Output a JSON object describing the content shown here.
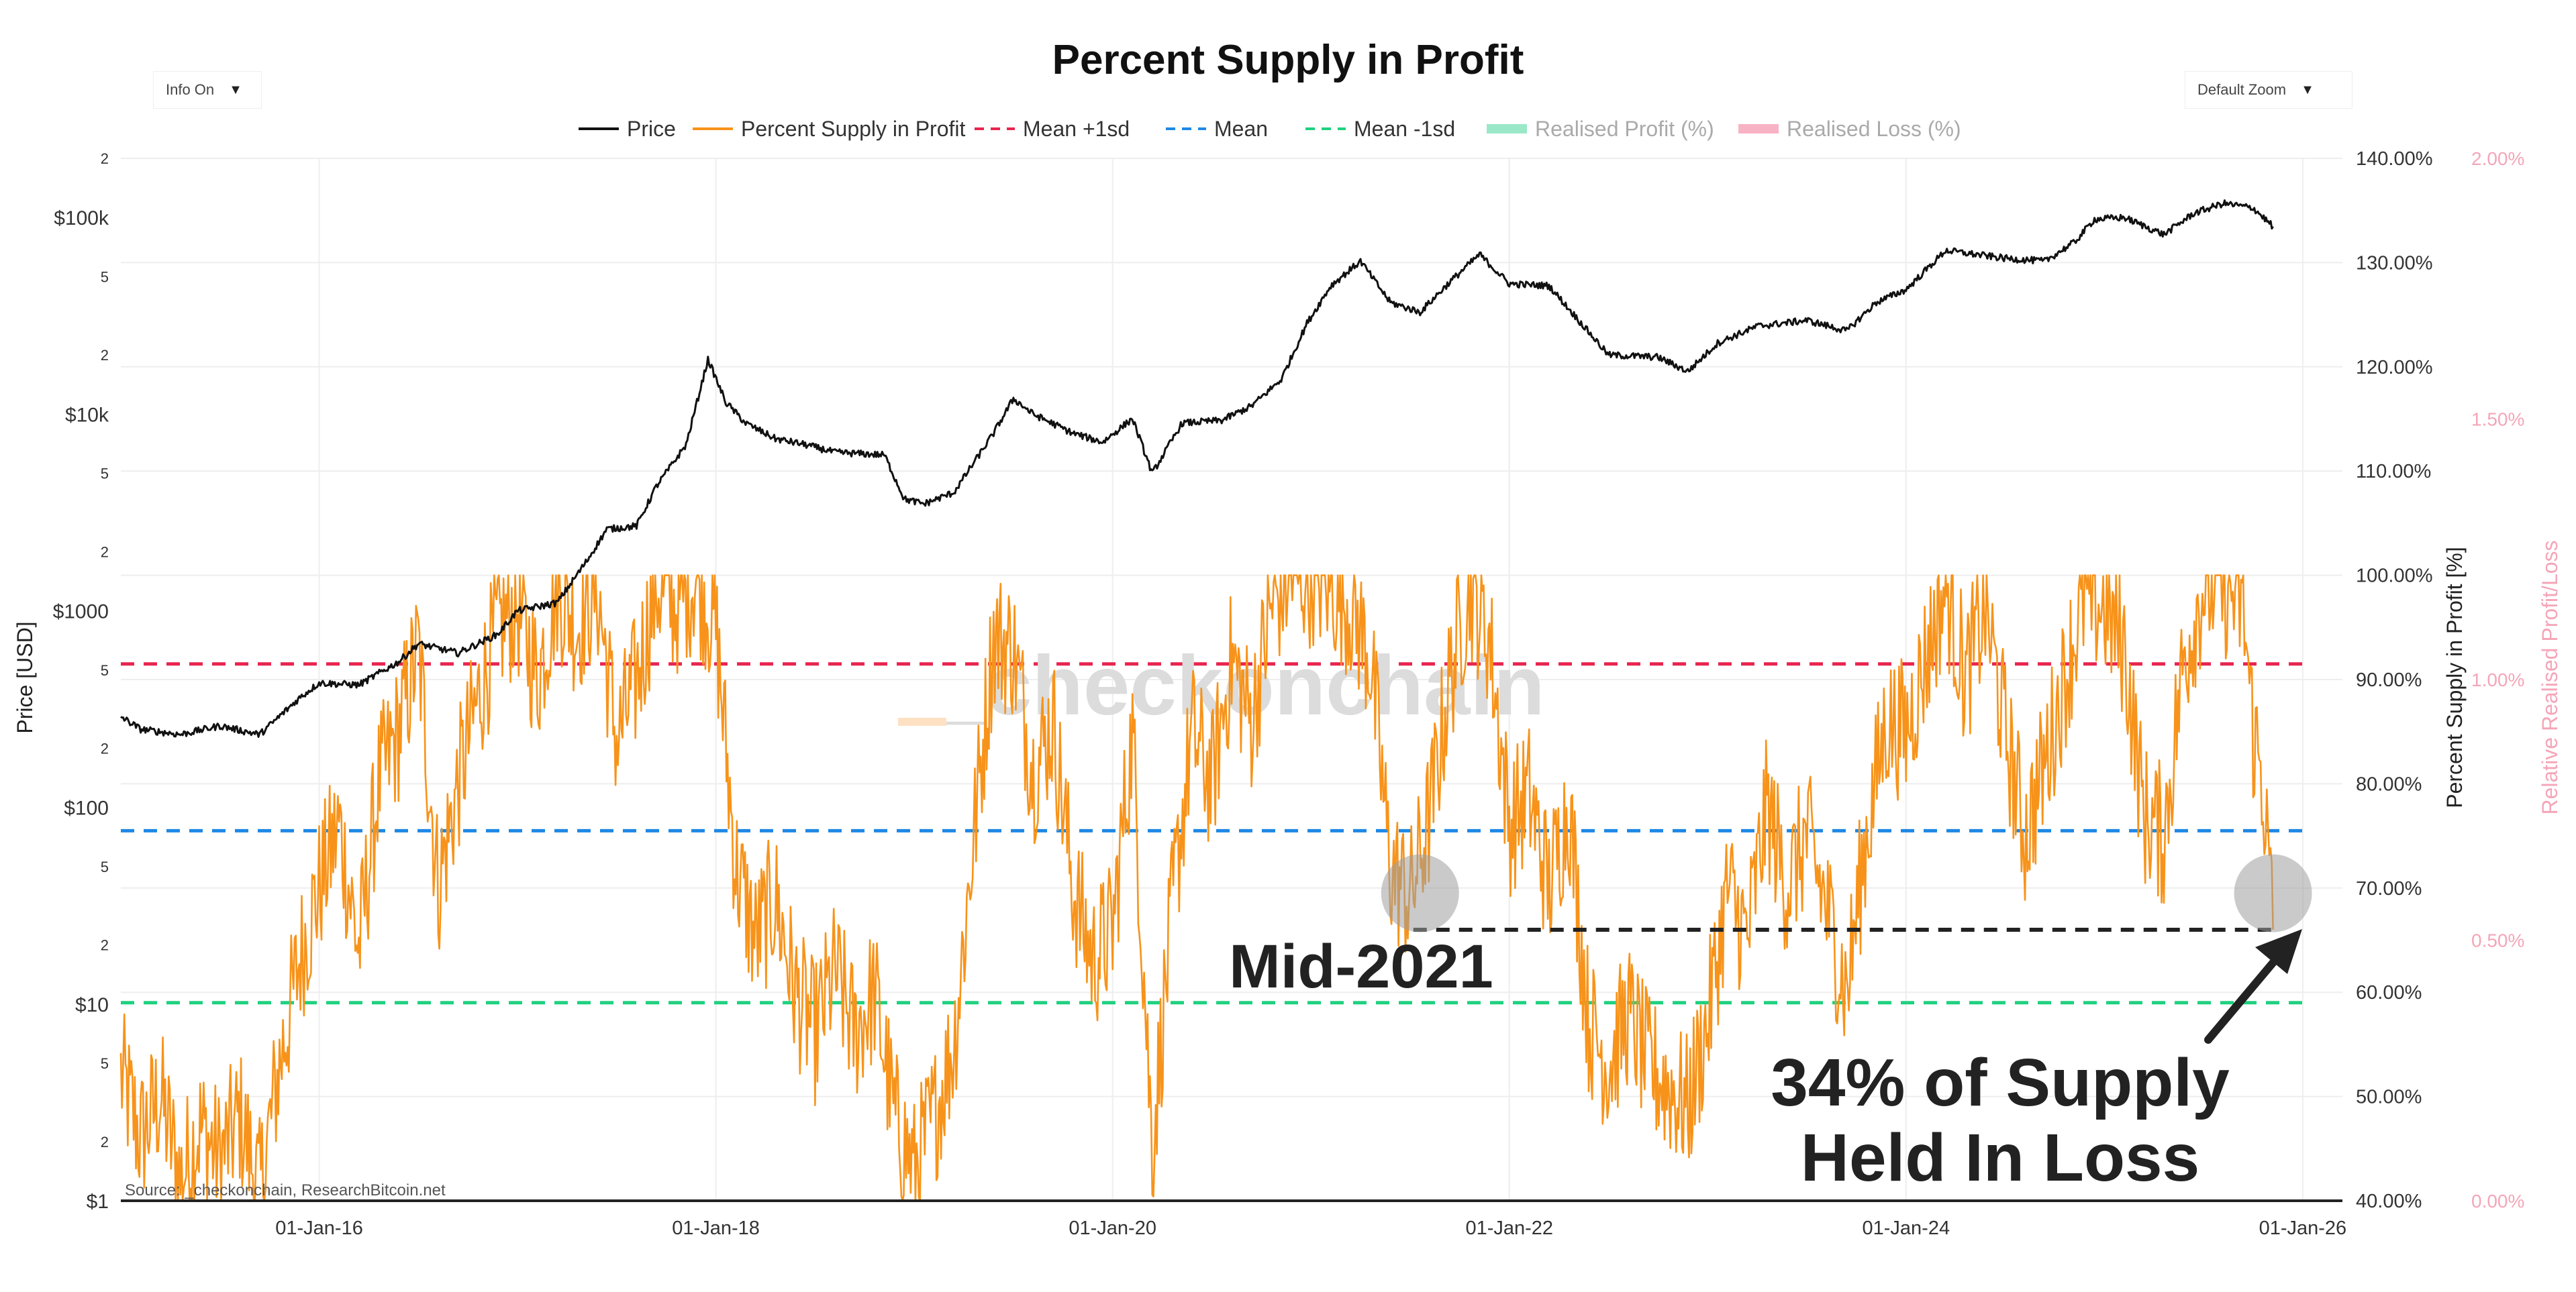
{
  "controls": {
    "info": {
      "label": "Info On",
      "caret": "▼"
    },
    "zoom": {
      "label": "Default Zoom",
      "caret": "▼"
    }
  },
  "colors": {
    "price": "#111111",
    "supply": "#f7931a",
    "mean_plus": "#e8254f",
    "mean": "#1e88e5",
    "mean_minus": "#1fd17f",
    "realised_profit": "#9be8c8",
    "realised_loss": "#f7b2c4",
    "callout": "#222222",
    "right2_axis": "#f4a6b8"
  },
  "chart_data": {
    "type": "line",
    "title": "Percent Supply in Profit",
    "source": "Source: _checkonchain, ResearchBitcoin.net",
    "watermark": "_checkonchain",
    "legend": [
      {
        "name": "Price",
        "style": "solid"
      },
      {
        "name": "Percent Supply in Profit",
        "style": "solid"
      },
      {
        "name": "Mean +1sd",
        "style": "dash"
      },
      {
        "name": "Mean",
        "style": "dash"
      },
      {
        "name": "Mean -1sd",
        "style": "dash"
      },
      {
        "name": "Realised Profit (%)",
        "style": "band"
      },
      {
        "name": "Realised Loss (%)",
        "style": "band"
      }
    ],
    "x_axis": {
      "ticks": [
        "01-Jan-16",
        "01-Jan-18",
        "01-Jan-20",
        "01-Jan-22",
        "01-Jan-24",
        "01-Jan-26"
      ],
      "range": [
        2015.0,
        2026.2
      ]
    },
    "y_left": {
      "label": "Price [USD]",
      "scale": "log",
      "range": [
        1,
        200000
      ],
      "ticks": [
        {
          "v": 1,
          "t": "$1"
        },
        {
          "v": 2,
          "t": "2"
        },
        {
          "v": 5,
          "t": "5"
        },
        {
          "v": 10,
          "t": "$10"
        },
        {
          "v": 20,
          "t": "2"
        },
        {
          "v": 50,
          "t": "5"
        },
        {
          "v": 100,
          "t": "$100"
        },
        {
          "v": 200,
          "t": "2"
        },
        {
          "v": 500,
          "t": "5"
        },
        {
          "v": 1000,
          "t": "$1000"
        },
        {
          "v": 2000,
          "t": "2"
        },
        {
          "v": 5000,
          "t": "5"
        },
        {
          "v": 10000,
          "t": "$10k"
        },
        {
          "v": 20000,
          "t": "2"
        },
        {
          "v": 50000,
          "t": "5"
        },
        {
          "v": 100000,
          "t": "$100k"
        },
        {
          "v": 200000,
          "t": "2"
        }
      ]
    },
    "y_right": {
      "label": "Percent Supply in Profit [%]",
      "range": [
        40,
        140
      ],
      "ticks": [
        {
          "v": 40,
          "t": "40.00%"
        },
        {
          "v": 50,
          "t": "50.00%"
        },
        {
          "v": 60,
          "t": "60.00%"
        },
        {
          "v": 70,
          "t": "70.00%"
        },
        {
          "v": 80,
          "t": "80.00%"
        },
        {
          "v": 90,
          "t": "90.00%"
        },
        {
          "v": 100,
          "t": "100.00%"
        },
        {
          "v": 110,
          "t": "110.00%"
        },
        {
          "v": 120,
          "t": "120.00%"
        },
        {
          "v": 130,
          "t": "130.00%"
        },
        {
          "v": 140,
          "t": "140.00%"
        }
      ]
    },
    "y_right2": {
      "label": "Relative Realised Profit/Loss",
      "range": [
        0,
        2
      ],
      "ticks": [
        {
          "v": 0,
          "t": "0.00%"
        },
        {
          "v": 0.5,
          "t": "0.50%"
        },
        {
          "v": 1.0,
          "t": "1.00%"
        },
        {
          "v": 1.5,
          "t": "1.50%"
        },
        {
          "v": 2.0,
          "t": "2.00%"
        }
      ]
    },
    "mean_lines": {
      "mean_plus_1sd": 91.5,
      "mean": 75.5,
      "mean_minus_1sd": 59.0
    },
    "price_series": [
      [
        2015.0,
        290
      ],
      [
        2015.1,
        250
      ],
      [
        2015.3,
        235
      ],
      [
        2015.5,
        260
      ],
      [
        2015.7,
        235
      ],
      [
        2015.9,
        360
      ],
      [
        2016.0,
        430
      ],
      [
        2016.2,
        420
      ],
      [
        2016.4,
        550
      ],
      [
        2016.5,
        680
      ],
      [
        2016.7,
        610
      ],
      [
        2016.9,
        760
      ],
      [
        2017.0,
        1000
      ],
      [
        2017.2,
        1100
      ],
      [
        2017.35,
        1800
      ],
      [
        2017.45,
        2600
      ],
      [
        2017.6,
        2700
      ],
      [
        2017.7,
        4300
      ],
      [
        2017.85,
        7000
      ],
      [
        2017.96,
        19000
      ],
      [
        2018.05,
        11500
      ],
      [
        2018.15,
        9000
      ],
      [
        2018.3,
        7500
      ],
      [
        2018.45,
        7000
      ],
      [
        2018.6,
        6400
      ],
      [
        2018.85,
        6200
      ],
      [
        2018.95,
        3700
      ],
      [
        2019.05,
        3500
      ],
      [
        2019.2,
        4000
      ],
      [
        2019.4,
        8000
      ],
      [
        2019.5,
        12000
      ],
      [
        2019.6,
        10000
      ],
      [
        2019.8,
        8000
      ],
      [
        2019.95,
        7200
      ],
      [
        2020.1,
        9500
      ],
      [
        2020.2,
        5000
      ],
      [
        2020.35,
        9000
      ],
      [
        2020.55,
        9300
      ],
      [
        2020.7,
        11000
      ],
      [
        2020.85,
        15000
      ],
      [
        2020.98,
        29000
      ],
      [
        2021.1,
        45000
      ],
      [
        2021.25,
        60000
      ],
      [
        2021.4,
        37000
      ],
      [
        2021.55,
        33000
      ],
      [
        2021.7,
        47000
      ],
      [
        2021.85,
        65000
      ],
      [
        2022.0,
        46000
      ],
      [
        2022.2,
        45000
      ],
      [
        2022.35,
        30000
      ],
      [
        2022.5,
        20000
      ],
      [
        2022.75,
        19500
      ],
      [
        2022.9,
        16500
      ],
      [
        2023.05,
        23000
      ],
      [
        2023.25,
        28000
      ],
      [
        2023.5,
        30000
      ],
      [
        2023.7,
        26500
      ],
      [
        2023.85,
        37000
      ],
      [
        2024.0,
        43000
      ],
      [
        2024.2,
        68000
      ],
      [
        2024.5,
        62000
      ],
      [
        2024.7,
        60000
      ],
      [
        2024.85,
        75000
      ],
      [
        2024.95,
        98000
      ],
      [
        2025.1,
        100000
      ],
      [
        2025.3,
        82000
      ],
      [
        2025.45,
        105000
      ],
      [
        2025.6,
        118000
      ],
      [
        2025.75,
        112000
      ],
      [
        2025.85,
        90000
      ]
    ],
    "supply_series": [
      [
        2015.0,
        52
      ],
      [
        2015.1,
        46
      ],
      [
        2015.2,
        50
      ],
      [
        2015.3,
        42
      ],
      [
        2015.4,
        47
      ],
      [
        2015.5,
        44
      ],
      [
        2015.6,
        48
      ],
      [
        2015.7,
        41
      ],
      [
        2015.8,
        53
      ],
      [
        2015.9,
        63
      ],
      [
        2016.0,
        70
      ],
      [
        2016.1,
        76
      ],
      [
        2016.2,
        64
      ],
      [
        2016.3,
        80
      ],
      [
        2016.4,
        85
      ],
      [
        2016.5,
        93
      ],
      [
        2016.6,
        70
      ],
      [
        2016.7,
        80
      ],
      [
        2016.8,
        88
      ],
      [
        2016.9,
        95
      ],
      [
        2017.0,
        97
      ],
      [
        2017.1,
        90
      ],
      [
        2017.2,
        99
      ],
      [
        2017.3,
        95
      ],
      [
        2017.4,
        99
      ],
      [
        2017.5,
        84
      ],
      [
        2017.6,
        90
      ],
      [
        2017.7,
        99
      ],
      [
        2017.8,
        97
      ],
      [
        2017.9,
        100
      ],
      [
        2018.0,
        95
      ],
      [
        2018.1,
        72
      ],
      [
        2018.2,
        65
      ],
      [
        2018.3,
        69
      ],
      [
        2018.4,
        60
      ],
      [
        2018.5,
        56
      ],
      [
        2018.6,
        62
      ],
      [
        2018.7,
        56
      ],
      [
        2018.8,
        60
      ],
      [
        2018.9,
        48
      ],
      [
        2019.0,
        43
      ],
      [
        2019.1,
        48
      ],
      [
        2019.2,
        55
      ],
      [
        2019.3,
        75
      ],
      [
        2019.4,
        94
      ],
      [
        2019.5,
        93
      ],
      [
        2019.6,
        81
      ],
      [
        2019.7,
        86
      ],
      [
        2019.8,
        70
      ],
      [
        2019.9,
        63
      ],
      [
        2020.0,
        66
      ],
      [
        2020.1,
        85
      ],
      [
        2020.2,
        45
      ],
      [
        2020.3,
        68
      ],
      [
        2020.4,
        85
      ],
      [
        2020.5,
        80
      ],
      [
        2020.6,
        92
      ],
      [
        2020.7,
        86
      ],
      [
        2020.8,
        97
      ],
      [
        2020.9,
        100
      ],
      [
        2021.0,
        100
      ],
      [
        2021.1,
        99
      ],
      [
        2021.2,
        97
      ],
      [
        2021.3,
        92
      ],
      [
        2021.4,
        72
      ],
      [
        2021.5,
        69
      ],
      [
        2021.6,
        77
      ],
      [
        2021.7,
        90
      ],
      [
        2021.8,
        99
      ],
      [
        2021.9,
        94
      ],
      [
        2022.0,
        76
      ],
      [
        2022.1,
        79
      ],
      [
        2022.2,
        70
      ],
      [
        2022.3,
        78
      ],
      [
        2022.4,
        57
      ],
      [
        2022.5,
        53
      ],
      [
        2022.6,
        58
      ],
      [
        2022.7,
        53
      ],
      [
        2022.8,
        51
      ],
      [
        2022.9,
        49
      ],
      [
        2023.0,
        57
      ],
      [
        2023.1,
        70
      ],
      [
        2023.2,
        65
      ],
      [
        2023.3,
        78
      ],
      [
        2023.4,
        70
      ],
      [
        2023.5,
        75
      ],
      [
        2023.6,
        68
      ],
      [
        2023.7,
        60
      ],
      [
        2023.8,
        75
      ],
      [
        2023.9,
        86
      ],
      [
        2024.0,
        85
      ],
      [
        2024.1,
        92
      ],
      [
        2024.2,
        99
      ],
      [
        2024.3,
        90
      ],
      [
        2024.4,
        97
      ],
      [
        2024.5,
        85
      ],
      [
        2024.6,
        75
      ],
      [
        2024.7,
        82
      ],
      [
        2024.8,
        90
      ],
      [
        2024.9,
        98
      ],
      [
        2025.0,
        97
      ],
      [
        2025.1,
        93
      ],
      [
        2025.2,
        77
      ],
      [
        2025.3,
        75
      ],
      [
        2025.4,
        92
      ],
      [
        2025.5,
        99
      ],
      [
        2025.6,
        99
      ],
      [
        2025.7,
        97
      ],
      [
        2025.75,
        85
      ],
      [
        2025.8,
        80
      ],
      [
        2025.85,
        66
      ]
    ],
    "annotations": {
      "mid2021_label": "Mid-2021",
      "loss_label_line1": "34% of Supply",
      "loss_label_line2": "Held In Loss",
      "reference_level": 66,
      "circle_mid2021": [
        2021.55,
        69.5
      ],
      "circle_now": [
        2025.85,
        69.5
      ]
    }
  }
}
